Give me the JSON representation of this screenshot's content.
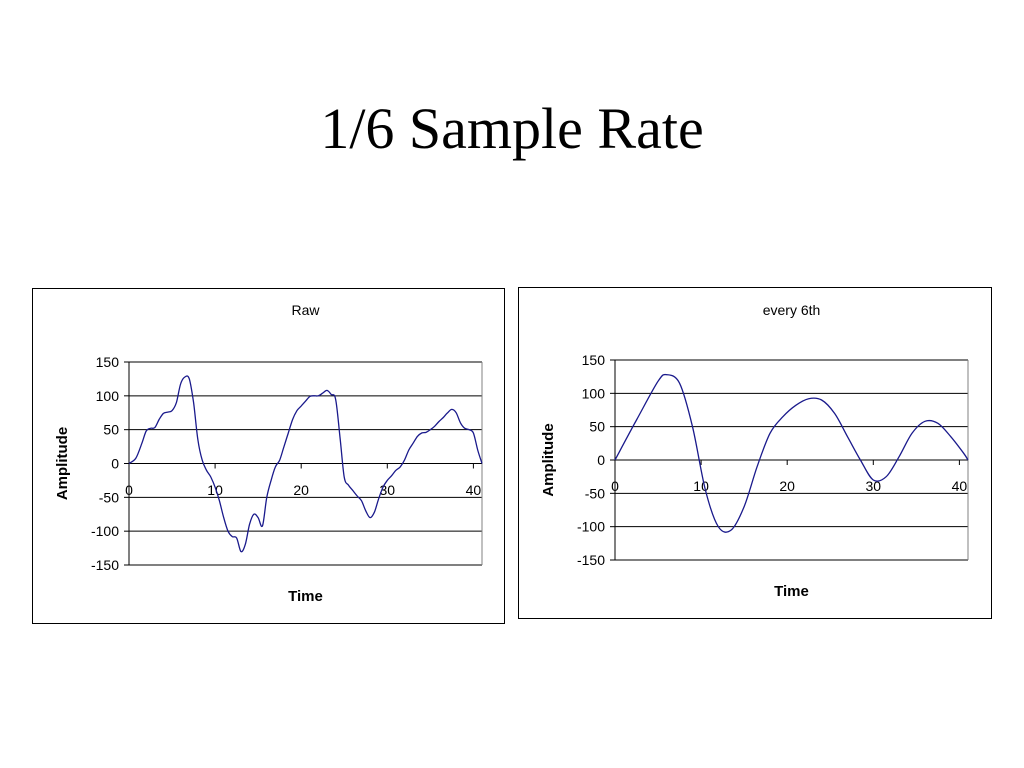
{
  "slide": {
    "title": "1/6 Sample Rate"
  },
  "chart_data": [
    {
      "type": "line",
      "title": "Raw",
      "xlabel": "Time",
      "ylabel": "Amplitude",
      "xlim": [
        0,
        41
      ],
      "ylim": [
        -150,
        150
      ],
      "xticks": [
        0,
        10,
        20,
        30,
        40
      ],
      "yticks": [
        150,
        100,
        50,
        0,
        -50,
        -100,
        -150
      ],
      "grid": "horizontal",
      "legend": "none",
      "line_color": "#1a1a8c",
      "series": [
        {
          "x": [
            0,
            0.8,
            1.5,
            2,
            2.5,
            3,
            3.5,
            4,
            4.5,
            5,
            5.5,
            6,
            6.5,
            7,
            7.5,
            8,
            8.5,
            9,
            9.5,
            10,
            10.5,
            11,
            11.5,
            12,
            12.5,
            13,
            13.5,
            14,
            14.5,
            15,
            15.5,
            16,
            16.5,
            17,
            17.5,
            18,
            18.5,
            19,
            19.5,
            20,
            20.5,
            21,
            21.5,
            22,
            22.5,
            23,
            23.5,
            24,
            24.5,
            25,
            25.5,
            26,
            26.5,
            27,
            27.5,
            28,
            28.5,
            29,
            29.5,
            30,
            30.5,
            31,
            31.5,
            32,
            32.5,
            33,
            33.5,
            34,
            34.5,
            35,
            35.5,
            36,
            36.5,
            37,
            37.5,
            38,
            38.5,
            39,
            39.5,
            40,
            40.5,
            41
          ],
          "y": [
            0,
            8,
            30,
            48,
            52,
            53,
            65,
            74,
            76,
            78,
            90,
            118,
            128,
            125,
            90,
            35,
            5,
            -10,
            -20,
            -35,
            -55,
            -80,
            -100,
            -108,
            -110,
            -130,
            -120,
            -90,
            -75,
            -80,
            -92,
            -50,
            -25,
            -5,
            5,
            25,
            45,
            65,
            78,
            85,
            92,
            99,
            100,
            100,
            104,
            108,
            102,
            95,
            40,
            -20,
            -32,
            -40,
            -48,
            -55,
            -70,
            -80,
            -72,
            -52,
            -35,
            -25,
            -18,
            -10,
            -5,
            5,
            20,
            30,
            40,
            45,
            46,
            50,
            55,
            62,
            68,
            75,
            80,
            75,
            60,
            52,
            50,
            45,
            20,
            0
          ]
        }
      ]
    },
    {
      "type": "line",
      "title": "every 6th",
      "xlabel": "Time",
      "ylabel": "Amplitude",
      "xlim": [
        0,
        41
      ],
      "ylim": [
        -150,
        150
      ],
      "xticks": [
        0,
        10,
        20,
        30,
        40
      ],
      "yticks": [
        150,
        100,
        50,
        0,
        -50,
        -100,
        -150
      ],
      "grid": "horizontal",
      "legend": "none",
      "line_color": "#1a1a8c",
      "series": [
        {
          "x": [
            0,
            2.5,
            5,
            6,
            7.5,
            9,
            10.5,
            12,
            13.5,
            15,
            16.5,
            18,
            19.5,
            21,
            22.5,
            24,
            25.5,
            27,
            28.5,
            30,
            31.5,
            33,
            34.5,
            36,
            37.5,
            39,
            40.5,
            41
          ],
          "y": [
            0,
            60,
            118,
            128,
            115,
            50,
            -45,
            -100,
            -105,
            -70,
            -10,
            40,
            65,
            82,
            92,
            90,
            70,
            35,
            0,
            -30,
            -25,
            5,
            40,
            58,
            55,
            35,
            10,
            0
          ]
        }
      ]
    }
  ]
}
